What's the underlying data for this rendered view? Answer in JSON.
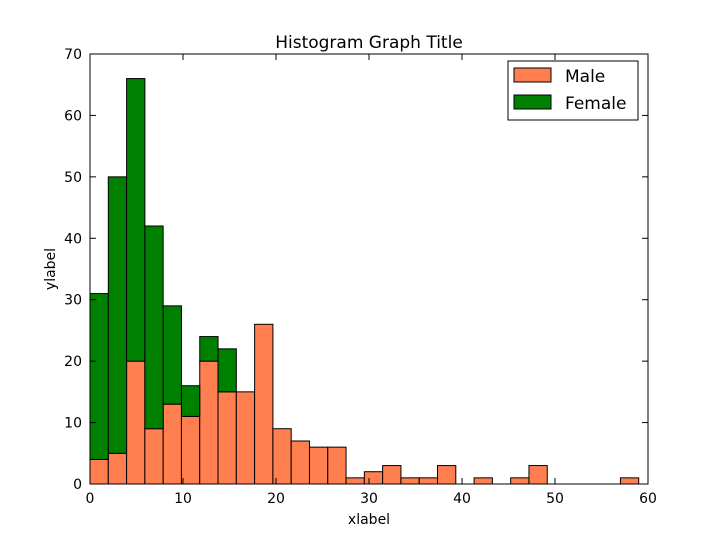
{
  "chart_data": {
    "type": "bar",
    "stacked": true,
    "title": "Histogram Graph Title",
    "xlabel": "xlabel",
    "ylabel": "ylabel",
    "xlim": [
      0,
      60
    ],
    "ylim": [
      0,
      70
    ],
    "xticks": [
      0,
      10,
      20,
      30,
      40,
      50,
      60
    ],
    "yticks": [
      0,
      10,
      20,
      30,
      40,
      50,
      60,
      70
    ],
    "grid": false,
    "legend_position": "top-right",
    "bin_width": 1.9667,
    "bin_starts": [
      0,
      1.9667,
      3.9333,
      5.9,
      7.8667,
      9.8333,
      11.8,
      13.7667,
      15.7333,
      17.7,
      19.6667,
      21.6333,
      23.6,
      25.5667,
      27.5333,
      29.5,
      31.4667,
      33.4333,
      35.4,
      37.3667,
      39.3333,
      41.3,
      43.2667,
      45.2333,
      47.2,
      49.1667,
      51.1333,
      53.1,
      55.0667,
      57.0333
    ],
    "series": [
      {
        "name": "Male",
        "color": "#ff7f50",
        "values": [
          4,
          5,
          20,
          9,
          13,
          11,
          20,
          15,
          15,
          26,
          9,
          7,
          6,
          6,
          1,
          2,
          3,
          1,
          1,
          3,
          0,
          1,
          0,
          1,
          3,
          0,
          0,
          0,
          0,
          1
        ]
      },
      {
        "name": "Female",
        "color": "#008000",
        "values": [
          27,
          45,
          46,
          33,
          16,
          5,
          4,
          7,
          0,
          0,
          0,
          0,
          0,
          0,
          0,
          0,
          0,
          0,
          0,
          0,
          0,
          0,
          0,
          0,
          0,
          0,
          0,
          0,
          0,
          0
        ]
      }
    ]
  }
}
